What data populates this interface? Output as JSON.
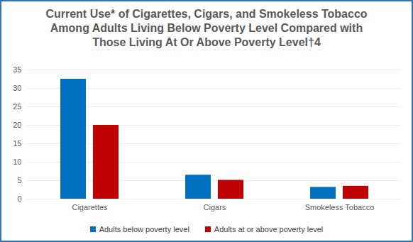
{
  "chart_data": {
    "type": "bar",
    "title": "Current Use* of Cigarettes, Cigars, and Smokeless Tobacco Among Adults Living Below Poverty Level Compared with Those Living At Or Above Poverty Level†4",
    "categories": [
      "Cigarettes",
      "Cigars",
      "Smokeless Tobacco"
    ],
    "series": [
      {
        "name": "Adults below poverty level",
        "color": "#0070c0",
        "values": [
          32.5,
          6.5,
          3.2
        ]
      },
      {
        "name": "Adults at or above poverty level",
        "color": "#c00000",
        "values": [
          20.0,
          5.1,
          3.5
        ]
      }
    ],
    "ylim": [
      0,
      35
    ],
    "yticks": [
      0,
      5,
      10,
      15,
      20,
      25,
      30,
      35
    ],
    "grid": true,
    "legend": "bottom"
  }
}
